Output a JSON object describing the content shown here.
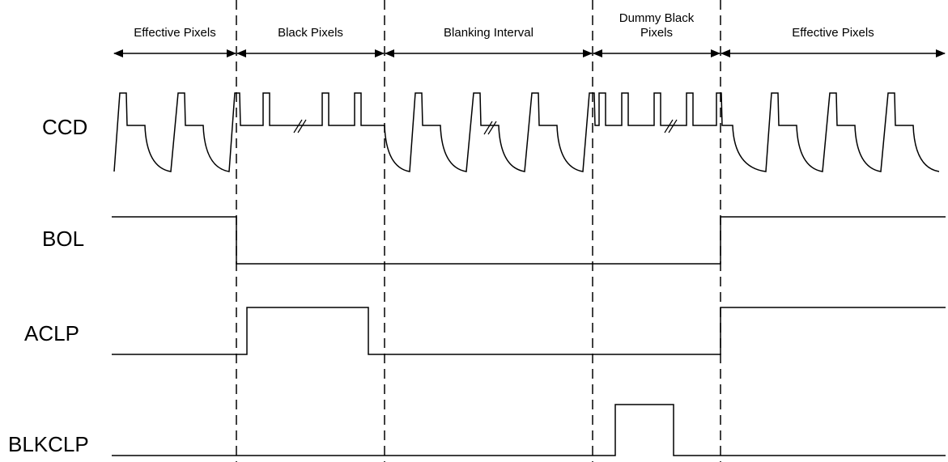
{
  "sections": [
    {
      "label": "Effective Pixels"
    },
    {
      "label": "Black Pixels"
    },
    {
      "label": "Blanking Interval"
    },
    {
      "label": "Dummy Black Pixels"
    },
    {
      "label": "Effective Pixels"
    }
  ],
  "signals": [
    {
      "name": "CCD"
    },
    {
      "name": "BOL"
    },
    {
      "name": "ACLP"
    },
    {
      "name": "BLKCLP"
    }
  ]
}
